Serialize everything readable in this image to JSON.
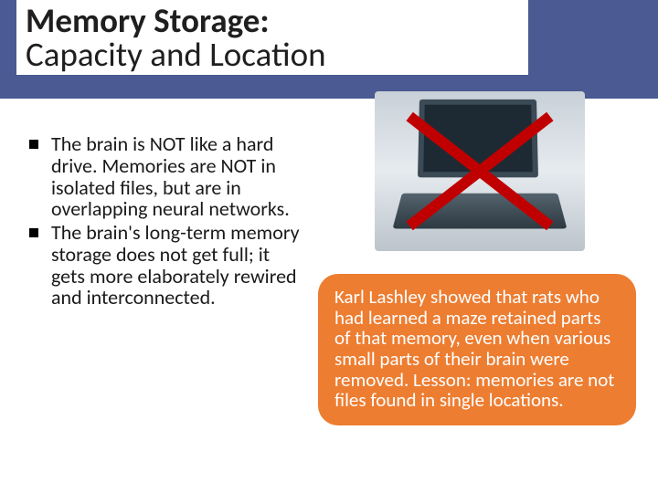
{
  "colors": {
    "header_band": "#4b5a92",
    "title_bg": "#ffffff",
    "title_text": "#1f1f1f",
    "body_text": "#1a1a1a",
    "bullet_marker": "#000000",
    "callout_bg": "#ed7d31",
    "callout_text": "#ffffff",
    "cross": "#c00000",
    "laptop_gradient_top": "#c8d0d8",
    "laptop_gradient_bottom": "#bcc4cc"
  },
  "typography": {
    "title_fontsize": 37,
    "title_line1_weight": 700,
    "title_line2_weight": 400,
    "body_fontsize": 22,
    "callout_fontsize": 21,
    "font_family": "Calibri"
  },
  "title": {
    "line1": "Memory Storage:",
    "line2": "Capacity and Location"
  },
  "bullets": [
    "The brain is NOT like a hard drive. Memories are NOT in isolated files, but are in overlapping neural networks.",
    "The brain's long-term memory storage does not get full; it gets more elaborately rewired and interconnected."
  ],
  "image": {
    "semantic": "laptop-crossed-out",
    "description": "laptop computer with red X over it"
  },
  "callout": {
    "text": "Karl Lashley showed that rats who had learned a maze retained parts of that memory, even when various small parts of their brain were removed.  Lesson: memories are not files found in single locations."
  }
}
